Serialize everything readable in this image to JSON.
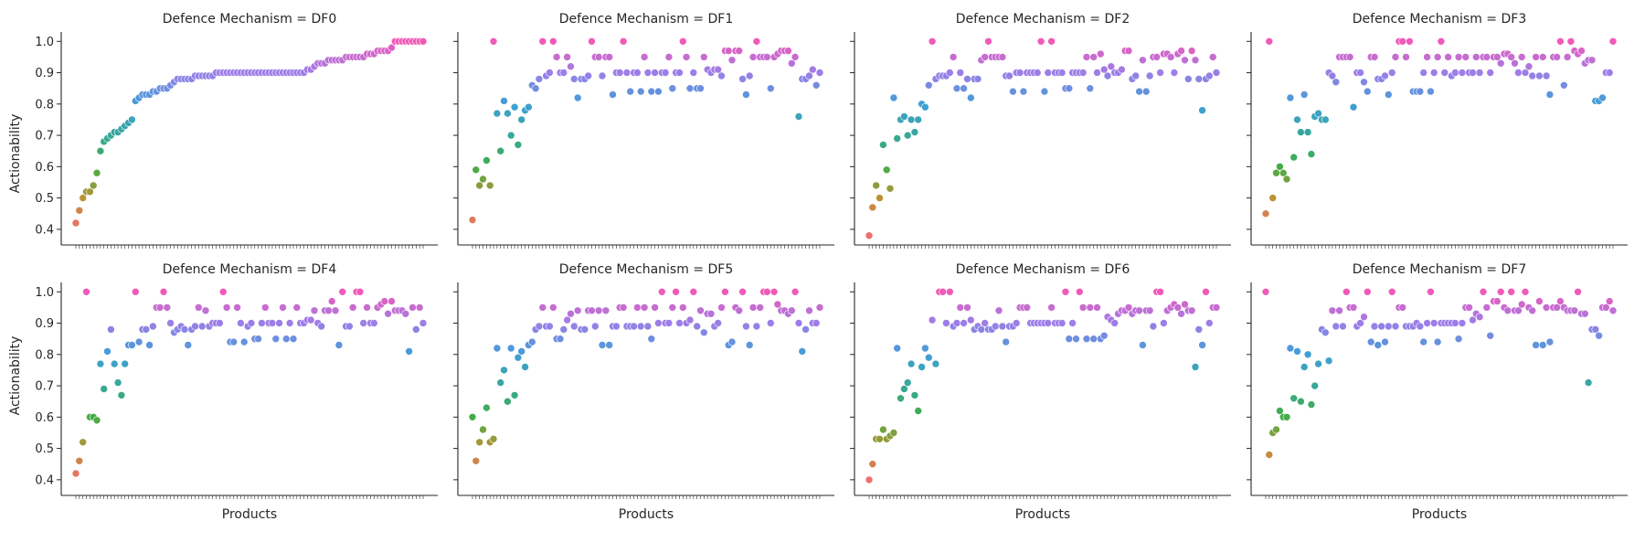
{
  "figure": {
    "background": "#ffffff"
  },
  "axis_labels": {
    "x": "Products",
    "y": "Actionability"
  },
  "chart_data": {
    "type": "scatter",
    "layout": "facet-grid 2 rows x 4 columns",
    "xlabel": "Products",
    "ylabel": "Actionability",
    "ylim": [
      0.35,
      1.03
    ],
    "yticks": [
      0.4,
      0.5,
      0.6,
      0.7,
      0.8,
      0.9,
      1.0
    ],
    "x_tick_labels_shown": false,
    "grid": false,
    "color_encoding": "hue by actionability value (husl palette: red at 0.4, olive, green, teal, blue, purple, pink at 1.0)",
    "color_scale": {
      "domain": [
        0.4,
        1.0
      ],
      "colors": [
        "#ef6f6c",
        "#b99334",
        "#43ad47",
        "#37a89a",
        "#3f9fd6",
        "#9d7ee8",
        "#f05ab8"
      ]
    },
    "facets": [
      {
        "title": "Defence Mechanism = DF0",
        "n_products": 100,
        "values": [
          0.42,
          0.46,
          0.5,
          0.52,
          0.52,
          0.54,
          0.58,
          0.65,
          0.68,
          0.69,
          0.7,
          0.71,
          0.71,
          0.72,
          0.73,
          0.74,
          0.75,
          0.81,
          0.82,
          0.83,
          0.83,
          0.83,
          0.84,
          0.84,
          0.85,
          0.85,
          0.85,
          0.86,
          0.87,
          0.88,
          0.88,
          0.88,
          0.88,
          0.88,
          0.89,
          0.89,
          0.89,
          0.89,
          0.89,
          0.89,
          0.9,
          0.9,
          0.9,
          0.9,
          0.9,
          0.9,
          0.9,
          0.9,
          0.9,
          0.9,
          0.9,
          0.9,
          0.9,
          0.9,
          0.9,
          0.9,
          0.9,
          0.9,
          0.9,
          0.9,
          0.9,
          0.9,
          0.9,
          0.9,
          0.9,
          0.9,
          0.91,
          0.91,
          0.92,
          0.93,
          0.93,
          0.93,
          0.94,
          0.94,
          0.94,
          0.94,
          0.94,
          0.95,
          0.95,
          0.95,
          0.95,
          0.95,
          0.95,
          0.96,
          0.96,
          0.96,
          0.97,
          0.97,
          0.97,
          0.97,
          0.98,
          1.0,
          1.0,
          1.0,
          1.0,
          1.0,
          1.0,
          1.0,
          1.0,
          1.0
        ]
      },
      {
        "title": "Defence Mechanism = DF1",
        "n_products": 100,
        "values": [
          0.43,
          0.59,
          0.54,
          0.56,
          0.62,
          0.54,
          1.0,
          0.77,
          0.65,
          0.81,
          0.77,
          0.7,
          0.79,
          0.67,
          0.75,
          0.78,
          0.79,
          0.86,
          0.85,
          0.88,
          1.0,
          0.89,
          0.9,
          1.0,
          0.95,
          0.9,
          0.9,
          0.95,
          0.92,
          0.88,
          0.82,
          0.88,
          0.88,
          0.89,
          1.0,
          0.95,
          0.95,
          0.89,
          0.95,
          0.95,
          0.83,
          0.9,
          0.9,
          1.0,
          0.9,
          0.84,
          0.9,
          0.9,
          0.84,
          0.95,
          0.9,
          0.84,
          0.9,
          0.84,
          0.9,
          0.9,
          0.95,
          0.85,
          0.9,
          0.9,
          1.0,
          0.95,
          0.85,
          0.9,
          0.85,
          0.85,
          0.95,
          0.91,
          0.9,
          0.91,
          0.91,
          0.89,
          0.97,
          0.97,
          0.94,
          0.97,
          0.97,
          0.88,
          0.83,
          0.89,
          0.95,
          1.0,
          0.95,
          0.95,
          0.95,
          0.85,
          0.95,
          0.96,
          0.97,
          0.97,
          0.97,
          0.93,
          0.95,
          0.76,
          0.88,
          0.88,
          0.89,
          0.91,
          0.86,
          0.9
        ]
      },
      {
        "title": "Defence Mechanism = DF2",
        "n_products": 100,
        "values": [
          0.38,
          0.47,
          0.54,
          0.5,
          0.67,
          0.59,
          0.53,
          0.82,
          0.69,
          0.75,
          0.76,
          0.7,
          0.75,
          0.71,
          0.75,
          0.8,
          0.79,
          0.86,
          1.0,
          0.88,
          0.89,
          0.89,
          0.89,
          0.9,
          0.95,
          0.85,
          0.9,
          0.85,
          0.88,
          0.82,
          0.88,
          0.88,
          0.94,
          0.95,
          1.0,
          0.95,
          0.95,
          0.95,
          0.95,
          0.89,
          0.89,
          0.84,
          0.9,
          0.9,
          0.84,
          0.9,
          0.9,
          0.9,
          0.9,
          1.0,
          0.84,
          0.9,
          1.0,
          0.9,
          0.9,
          0.9,
          0.85,
          0.85,
          0.9,
          0.9,
          0.9,
          0.9,
          0.95,
          0.85,
          0.95,
          0.9,
          0.96,
          0.91,
          0.89,
          0.92,
          0.9,
          0.9,
          0.91,
          0.97,
          0.97,
          0.88,
          0.89,
          0.84,
          0.94,
          0.84,
          0.89,
          0.95,
          0.95,
          0.9,
          0.96,
          0.96,
          0.95,
          0.9,
          0.96,
          0.97,
          0.94,
          0.88,
          0.97,
          0.94,
          0.88,
          0.78,
          0.88,
          0.89,
          0.95,
          0.9
        ]
      },
      {
        "title": "Defence Mechanism = DF3",
        "n_products": 100,
        "values": [
          0.45,
          1.0,
          0.5,
          0.58,
          0.6,
          0.58,
          0.56,
          0.82,
          0.63,
          0.75,
          0.71,
          0.83,
          0.71,
          0.64,
          0.76,
          0.77,
          0.75,
          0.75,
          0.9,
          0.89,
          0.87,
          0.95,
          0.95,
          0.95,
          0.95,
          0.79,
          0.9,
          0.9,
          0.87,
          0.84,
          0.95,
          0.95,
          0.88,
          0.88,
          0.89,
          0.83,
          0.9,
          0.95,
          1.0,
          1.0,
          0.95,
          1.0,
          0.84,
          0.84,
          0.84,
          0.9,
          0.95,
          0.84,
          0.9,
          0.95,
          1.0,
          0.9,
          0.95,
          0.89,
          0.9,
          0.95,
          0.9,
          0.95,
          0.9,
          0.9,
          0.95,
          0.9,
          0.95,
          0.95,
          0.9,
          0.95,
          0.95,
          0.93,
          0.96,
          0.96,
          0.95,
          0.93,
          0.9,
          0.95,
          0.9,
          0.92,
          0.89,
          0.95,
          0.89,
          0.95,
          0.89,
          0.83,
          0.95,
          0.95,
          1.0,
          0.86,
          0.95,
          1.0,
          0.97,
          0.96,
          0.97,
          0.93,
          0.94,
          0.94,
          0.81,
          0.81,
          0.82,
          0.9,
          0.9,
          1.0
        ]
      },
      {
        "title": "Defence Mechanism = DF4",
        "n_products": 100,
        "values": [
          0.42,
          0.46,
          0.52,
          1.0,
          0.6,
          0.6,
          0.59,
          0.77,
          0.69,
          0.81,
          0.88,
          0.77,
          0.71,
          0.67,
          0.77,
          0.83,
          0.83,
          1.0,
          0.84,
          0.88,
          0.88,
          0.83,
          0.89,
          0.95,
          0.95,
          1.0,
          0.95,
          0.9,
          0.87,
          0.88,
          0.89,
          0.88,
          0.83,
          0.88,
          0.89,
          0.95,
          0.89,
          0.94,
          0.89,
          0.9,
          0.9,
          0.9,
          1.0,
          0.95,
          0.84,
          0.84,
          0.95,
          0.9,
          0.84,
          0.89,
          0.9,
          0.85,
          0.85,
          0.9,
          0.95,
          0.9,
          0.9,
          0.85,
          0.9,
          0.95,
          0.85,
          0.9,
          0.85,
          0.95,
          0.9,
          0.9,
          0.91,
          0.91,
          0.94,
          0.9,
          0.89,
          0.94,
          0.94,
          0.97,
          0.94,
          0.83,
          1.0,
          0.89,
          0.89,
          0.95,
          1.0,
          1.0,
          0.9,
          0.95,
          0.9,
          0.9,
          0.95,
          0.96,
          0.97,
          0.93,
          0.97,
          0.94,
          0.94,
          0.94,
          0.93,
          0.81,
          0.95,
          0.88,
          0.95,
          0.9
        ]
      },
      {
        "title": "Defence Mechanism = DF5",
        "n_products": 100,
        "values": [
          0.6,
          0.46,
          0.52,
          0.56,
          0.63,
          0.52,
          0.53,
          0.82,
          0.71,
          0.75,
          0.65,
          0.82,
          0.67,
          0.79,
          0.81,
          0.76,
          0.83,
          0.84,
          0.88,
          0.89,
          0.95,
          0.89,
          0.89,
          0.95,
          0.85,
          0.85,
          0.88,
          0.91,
          0.93,
          0.89,
          0.94,
          0.88,
          0.88,
          0.94,
          0.94,
          0.89,
          0.94,
          0.83,
          0.94,
          0.83,
          0.89,
          0.89,
          0.95,
          0.95,
          0.89,
          0.89,
          0.89,
          0.95,
          0.89,
          0.95,
          0.89,
          0.85,
          0.95,
          0.9,
          1.0,
          0.9,
          0.9,
          0.95,
          1.0,
          0.9,
          0.95,
          0.9,
          0.91,
          1.0,
          0.89,
          0.94,
          0.87,
          0.93,
          0.93,
          0.89,
          0.9,
          0.95,
          1.0,
          0.83,
          0.84,
          0.95,
          0.94,
          1.0,
          0.89,
          0.83,
          0.95,
          0.89,
          0.95,
          1.0,
          1.0,
          0.9,
          1.0,
          0.96,
          0.94,
          0.94,
          0.93,
          0.94,
          1.0,
          0.9,
          0.81,
          0.88,
          0.94,
          0.9,
          0.9,
          0.95
        ]
      },
      {
        "title": "Defence Mechanism = DF6",
        "n_products": 100,
        "values": [
          0.4,
          0.45,
          0.53,
          0.53,
          0.56,
          0.53,
          0.54,
          0.55,
          0.82,
          0.66,
          0.69,
          0.71,
          0.77,
          0.67,
          0.62,
          0.76,
          0.82,
          0.79,
          0.91,
          0.77,
          1.0,
          1.0,
          0.9,
          1.0,
          0.89,
          0.9,
          0.95,
          0.9,
          0.95,
          0.91,
          0.88,
          0.89,
          0.88,
          0.9,
          0.88,
          0.88,
          0.89,
          0.94,
          0.89,
          0.84,
          0.89,
          0.89,
          0.9,
          0.95,
          0.95,
          0.95,
          0.9,
          0.9,
          0.9,
          0.9,
          0.9,
          0.9,
          0.95,
          0.9,
          0.9,
          0.9,
          1.0,
          0.85,
          0.9,
          0.85,
          1.0,
          0.95,
          0.85,
          0.95,
          0.85,
          0.95,
          0.85,
          0.86,
          0.92,
          0.91,
          0.9,
          0.93,
          0.94,
          0.94,
          0.95,
          0.93,
          0.94,
          0.94,
          0.83,
          0.94,
          0.94,
          0.89,
          1.0,
          1.0,
          0.9,
          0.94,
          0.95,
          0.96,
          0.95,
          0.93,
          0.96,
          0.94,
          0.94,
          0.76,
          0.88,
          0.83,
          1.0,
          0.9,
          0.95,
          0.95
        ]
      },
      {
        "title": "Defence Mechanism = DF7",
        "n_products": 100,
        "values": [
          1.0,
          0.48,
          0.55,
          0.56,
          0.62,
          0.6,
          0.6,
          0.82,
          0.66,
          0.81,
          0.65,
          0.76,
          0.8,
          0.64,
          0.7,
          0.77,
          0.88,
          0.87,
          0.78,
          0.94,
          0.89,
          0.94,
          0.89,
          1.0,
          0.95,
          0.95,
          0.89,
          0.9,
          0.92,
          1.0,
          0.84,
          0.89,
          0.83,
          0.89,
          0.84,
          0.89,
          1.0,
          0.89,
          0.95,
          0.95,
          0.89,
          0.89,
          0.89,
          0.9,
          0.89,
          0.84,
          0.9,
          1.0,
          0.9,
          0.84,
          0.9,
          0.9,
          0.9,
          0.9,
          0.9,
          0.85,
          0.9,
          0.95,
          0.95,
          0.91,
          0.93,
          0.92,
          1.0,
          0.95,
          0.86,
          0.97,
          0.97,
          1.0,
          0.95,
          0.94,
          1.0,
          0.94,
          0.94,
          0.96,
          1.0,
          0.95,
          0.94,
          0.83,
          0.97,
          0.83,
          0.95,
          0.84,
          0.95,
          0.95,
          0.97,
          0.95,
          0.94,
          0.94,
          0.94,
          1.0,
          0.93,
          0.93,
          0.71,
          0.88,
          0.88,
          0.86,
          0.95,
          0.95,
          0.97,
          0.94
        ]
      }
    ]
  }
}
